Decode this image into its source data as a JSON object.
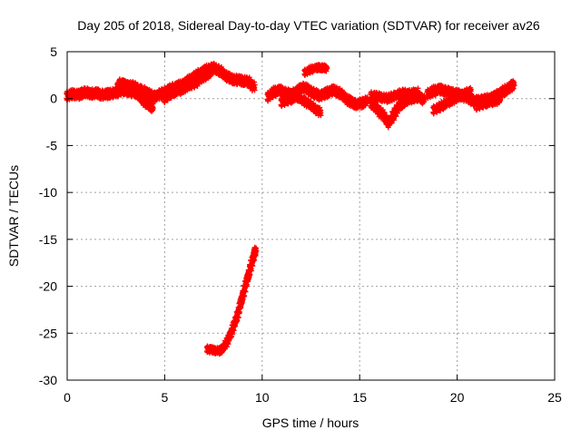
{
  "chart_data": {
    "type": "scatter",
    "title": "Day 205 of 2018, Sidereal Day-to-day VTEC variation (SDTVAR) for receiver av26",
    "xlabel": "GPS time / hours",
    "ylabel": "SDTVAR / TECUs",
    "xlim": [
      0,
      25
    ],
    "ylim": [
      -30,
      5
    ],
    "xticks": [
      0,
      5,
      10,
      15,
      20,
      25
    ],
    "yticks": [
      -30,
      -25,
      -20,
      -15,
      -10,
      -5,
      0,
      5
    ],
    "grid": true,
    "legend": "none",
    "series": [
      {
        "name": "main-track",
        "color": "#ff0000",
        "spread": 0.35,
        "points": [
          [
            0.0,
            0.3
          ],
          [
            0.3,
            0.5
          ],
          [
            0.6,
            0.4
          ],
          [
            0.9,
            0.7
          ],
          [
            1.2,
            0.5
          ],
          [
            1.5,
            0.6
          ],
          [
            1.8,
            0.4
          ],
          [
            2.1,
            0.5
          ],
          [
            2.4,
            0.6
          ],
          [
            2.7,
            0.8
          ],
          [
            3.0,
            0.9
          ],
          [
            3.3,
            0.7
          ],
          [
            3.6,
            0.6
          ],
          [
            3.9,
            0.3
          ],
          [
            4.2,
            0.1
          ],
          [
            4.5,
            0.2
          ],
          [
            4.8,
            0.5
          ],
          [
            5.1,
            0.8
          ],
          [
            5.4,
            1.1
          ],
          [
            5.7,
            1.3
          ],
          [
            6.0,
            1.6
          ],
          [
            6.3,
            2.0
          ],
          [
            6.6,
            2.4
          ],
          [
            6.9,
            2.8
          ],
          [
            7.2,
            3.1
          ],
          [
            7.5,
            3.3
          ],
          [
            7.8,
            3.0
          ],
          [
            8.1,
            2.5
          ],
          [
            8.4,
            2.1
          ],
          [
            8.7,
            2.0
          ],
          [
            9.0,
            1.9
          ],
          [
            9.3,
            1.8
          ],
          [
            9.6,
            1.2
          ]
        ]
      },
      {
        "name": "lower-branch-early",
        "color": "#ff0000",
        "spread": 0.3,
        "points": [
          [
            2.6,
            1.3
          ],
          [
            2.9,
            1.6
          ],
          [
            3.2,
            1.2
          ],
          [
            3.5,
            0.7
          ],
          [
            3.8,
            0.0
          ],
          [
            4.1,
            -0.6
          ],
          [
            4.4,
            -1.0
          ]
        ]
      },
      {
        "name": "upper-branch-early",
        "color": "#ff0000",
        "spread": 0.25,
        "points": [
          [
            2.7,
            1.7
          ],
          [
            3.0,
            1.5
          ],
          [
            3.4,
            1.4
          ],
          [
            3.8,
            1.0
          ],
          [
            4.2,
            0.6
          ],
          [
            4.6,
            0.2
          ]
        ]
      },
      {
        "name": "lower-branch-mid",
        "color": "#ff0000",
        "spread": 0.3,
        "points": [
          [
            5.0,
            0.0
          ],
          [
            5.4,
            0.6
          ],
          [
            5.8,
            0.9
          ],
          [
            6.2,
            1.3
          ],
          [
            6.6,
            1.7
          ],
          [
            7.0,
            2.3
          ],
          [
            7.4,
            2.8
          ]
        ]
      },
      {
        "name": "segment-10-14",
        "color": "#ff0000",
        "spread": 0.35,
        "points": [
          [
            10.3,
            0.2
          ],
          [
            10.6,
            0.7
          ],
          [
            10.9,
            0.9
          ],
          [
            11.2,
            0.6
          ],
          [
            11.5,
            0.4
          ],
          [
            11.8,
            0.8
          ],
          [
            12.1,
            1.2
          ],
          [
            12.4,
            0.9
          ],
          [
            12.7,
            0.5
          ],
          [
            13.0,
            0.3
          ],
          [
            13.3,
            0.6
          ],
          [
            13.6,
            0.9
          ],
          [
            13.9,
            0.7
          ],
          [
            14.2,
            0.2
          ],
          [
            14.5,
            -0.3
          ],
          [
            14.8,
            -0.6
          ],
          [
            15.1,
            -0.5
          ],
          [
            15.4,
            -0.2
          ]
        ]
      },
      {
        "name": "branch-11-13",
        "color": "#ff0000",
        "spread": 0.3,
        "points": [
          [
            11.0,
            -0.4
          ],
          [
            11.4,
            -0.1
          ],
          [
            11.8,
            0.2
          ],
          [
            12.2,
            -0.3
          ],
          [
            12.6,
            -0.9
          ],
          [
            13.0,
            -1.5
          ]
        ]
      },
      {
        "name": "isolated-13",
        "color": "#ff0000",
        "spread": 0.2,
        "points": [
          [
            12.2,
            2.8
          ],
          [
            12.5,
            3.1
          ],
          [
            12.8,
            3.3
          ],
          [
            13.1,
            3.3
          ],
          [
            13.3,
            3.2
          ]
        ]
      },
      {
        "name": "segment-15-17",
        "color": "#ff0000",
        "spread": 0.35,
        "points": [
          [
            15.6,
            -0.5
          ],
          [
            15.9,
            -1.1
          ],
          [
            16.2,
            -1.8
          ],
          [
            16.5,
            -2.6
          ],
          [
            16.8,
            -1.5
          ],
          [
            17.1,
            -0.6
          ],
          [
            17.4,
            -0.2
          ],
          [
            17.7,
            0.1
          ],
          [
            18.0,
            0.2
          ],
          [
            18.3,
            -0.1
          ]
        ]
      },
      {
        "name": "branch-16-18",
        "color": "#ff0000",
        "spread": 0.3,
        "points": [
          [
            15.6,
            0.3
          ],
          [
            16.0,
            0.2
          ],
          [
            16.4,
            0.0
          ],
          [
            16.8,
            0.3
          ],
          [
            17.2,
            0.6
          ],
          [
            17.6,
            0.5
          ],
          [
            18.0,
            0.7
          ]
        ]
      },
      {
        "name": "segment-18-23",
        "color": "#ff0000",
        "spread": 0.35,
        "points": [
          [
            18.5,
            0.5
          ],
          [
            18.8,
            0.8
          ],
          [
            19.1,
            1.0
          ],
          [
            19.4,
            0.8
          ],
          [
            19.7,
            0.6
          ],
          [
            20.0,
            0.5
          ],
          [
            20.3,
            0.3
          ],
          [
            20.6,
            0.0
          ],
          [
            20.9,
            -0.3
          ],
          [
            21.2,
            -0.2
          ],
          [
            21.5,
            -0.1
          ],
          [
            21.8,
            0.1
          ],
          [
            22.1,
            0.4
          ],
          [
            22.4,
            0.8
          ],
          [
            22.7,
            1.2
          ],
          [
            22.9,
            1.5
          ]
        ]
      },
      {
        "name": "branch-19-20",
        "color": "#ff0000",
        "spread": 0.3,
        "points": [
          [
            18.8,
            -1.2
          ],
          [
            19.2,
            -0.8
          ],
          [
            19.6,
            -0.3
          ],
          [
            20.0,
            0.1
          ],
          [
            20.4,
            0.5
          ],
          [
            20.7,
            0.8
          ]
        ]
      },
      {
        "name": "branch-21-22",
        "color": "#ff0000",
        "spread": 0.3,
        "points": [
          [
            21.0,
            -0.8
          ],
          [
            21.4,
            -0.5
          ],
          [
            21.8,
            -0.3
          ],
          [
            22.2,
            -0.1
          ]
        ]
      },
      {
        "name": "low-arc",
        "color": "#ff0000",
        "spread": 0.22,
        "points": [
          [
            7.2,
            -26.7
          ],
          [
            7.5,
            -26.8
          ],
          [
            7.8,
            -26.9
          ],
          [
            8.0,
            -26.6
          ],
          [
            8.2,
            -25.9
          ],
          [
            8.4,
            -25.0
          ],
          [
            8.6,
            -23.9
          ],
          [
            8.8,
            -22.6
          ],
          [
            9.0,
            -21.0
          ],
          [
            9.2,
            -19.5
          ],
          [
            9.4,
            -18.0
          ],
          [
            9.6,
            -16.6
          ],
          [
            9.65,
            -16.1
          ]
        ]
      }
    ]
  }
}
